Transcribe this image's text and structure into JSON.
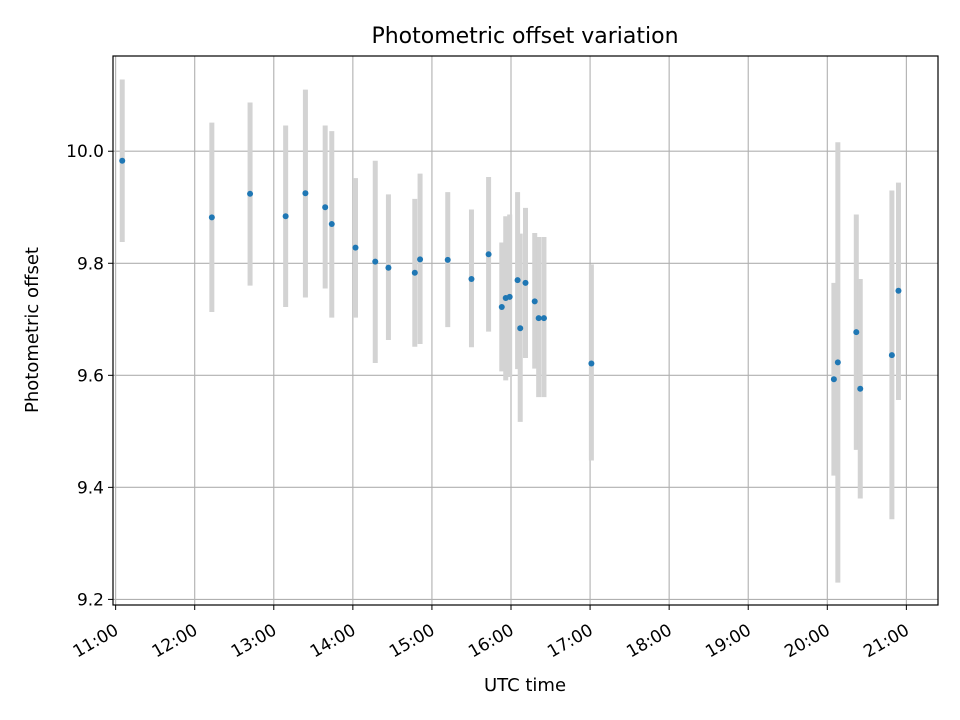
{
  "chart_data": {
    "type": "scatter",
    "title": "Photometric offset variation",
    "xlabel": "UTC time",
    "ylabel": "Photometric offset",
    "x_ticks": [
      "11:00",
      "12:00",
      "13:00",
      "14:00",
      "15:00",
      "16:00",
      "17:00",
      "18:00",
      "19:00",
      "20:00",
      "21:00"
    ],
    "y_ticks": [
      "9.2",
      "9.4",
      "9.6",
      "9.8",
      "10.0"
    ],
    "xlim": [
      "10:58",
      "21:24"
    ],
    "ylim": [
      9.19,
      10.17
    ],
    "grid": true,
    "colors": {
      "point": "#1f77b4",
      "errorbar": "#d3d3d3",
      "grid": "#b0b0b0"
    },
    "series": [
      {
        "x": [
          "11:05",
          "12:13",
          "12:42",
          "13:09",
          "13:24",
          "13:39",
          "13:44",
          "14:02",
          "14:17",
          "14:27",
          "14:47",
          "14:51",
          "15:12",
          "15:30",
          "15:43",
          "15:53",
          "15:56",
          "15:59",
          "16:05",
          "16:07",
          "16:11",
          "16:18",
          "16:21",
          "16:25",
          "17:01",
          "20:05",
          "20:08",
          "20:22",
          "20:25",
          "20:49",
          "20:54"
        ],
        "y": [
          9.983,
          9.882,
          9.924,
          9.884,
          9.925,
          9.9,
          9.87,
          9.828,
          9.803,
          9.792,
          9.783,
          9.807,
          9.806,
          9.772,
          9.816,
          9.722,
          9.738,
          9.74,
          9.77,
          9.684,
          9.765,
          9.732,
          9.702,
          9.702,
          9.621,
          9.593,
          9.623,
          9.677,
          9.576,
          9.636,
          9.751
        ],
        "err_low": [
          9.838,
          9.713,
          9.76,
          9.722,
          9.739,
          9.755,
          9.703,
          9.703,
          9.622,
          9.663,
          9.651,
          9.656,
          9.686,
          9.65,
          9.678,
          9.607,
          9.591,
          9.597,
          9.611,
          9.517,
          9.631,
          9.612,
          9.561,
          9.561,
          9.448,
          9.421,
          9.23,
          9.467,
          9.38,
          9.343,
          9.556
        ],
        "err_high": [
          10.128,
          10.051,
          10.087,
          10.046,
          10.11,
          10.046,
          10.036,
          9.952,
          9.983,
          9.923,
          9.915,
          9.96,
          9.927,
          9.896,
          9.954,
          9.837,
          9.884,
          9.887,
          9.927,
          9.853,
          9.899,
          9.854,
          9.847,
          9.847,
          9.798,
          9.765,
          10.016,
          9.887,
          9.772,
          9.93,
          9.944
        ]
      }
    ]
  }
}
